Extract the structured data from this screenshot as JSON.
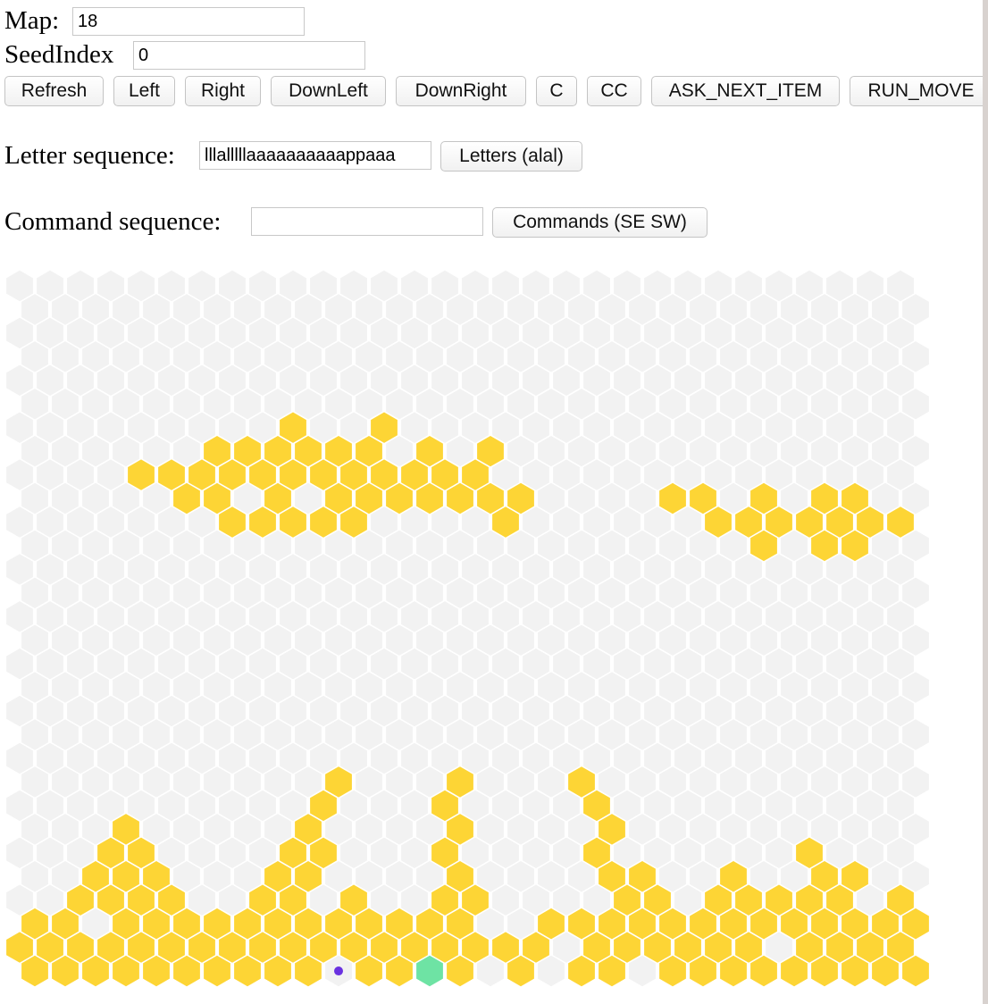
{
  "form": {
    "map": {
      "label": "Map:",
      "value": "18"
    },
    "seed_index": {
      "label": "SeedIndex",
      "value": "0"
    },
    "buttons": [
      "Refresh",
      "Left",
      "Right",
      "DownLeft",
      "DownRight",
      "C",
      "CC",
      "ASK_NEXT_ITEM",
      "RUN_MOVE"
    ],
    "letter_sequence": {
      "label": "Letter sequence:",
      "value": "lllalllllaaaaaaaaaappaaa",
      "button": "Letters (alal)"
    },
    "command_sequence": {
      "label": "Command sequence:",
      "button": "Commands (SE SW)"
    }
  }
}
